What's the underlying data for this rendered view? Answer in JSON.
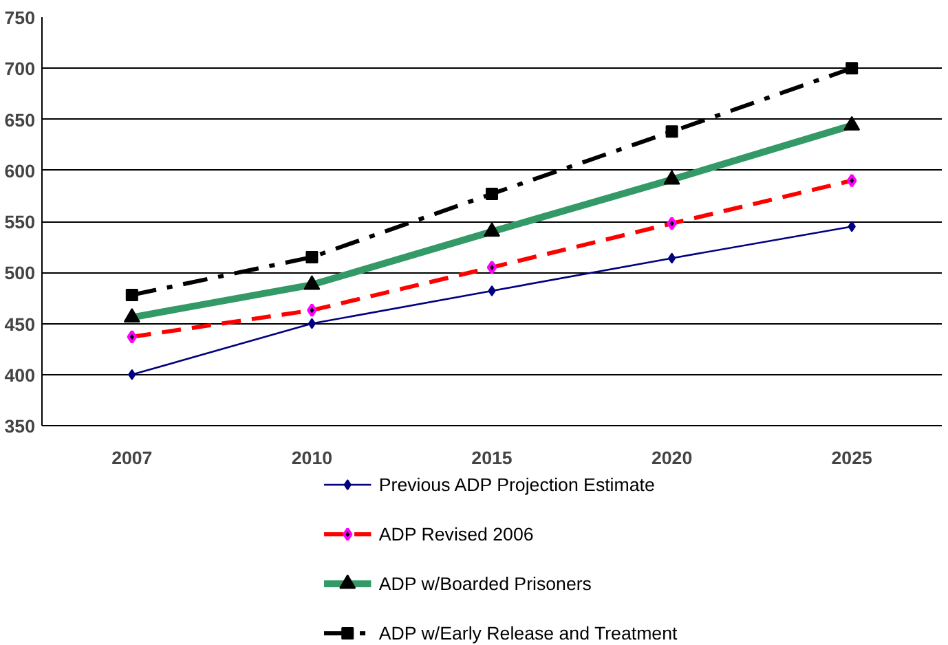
{
  "chart_data": {
    "type": "line",
    "categories": [
      "2007",
      "2010",
      "2015",
      "2020",
      "2025"
    ],
    "ylim": [
      350,
      750
    ],
    "yticks": [
      350,
      400,
      450,
      500,
      550,
      600,
      650,
      700,
      750
    ],
    "grid": "y",
    "legend": "bottom",
    "series": [
      {
        "name": "Previous ADP Projection Estimate",
        "color": "#000080",
        "values": [
          400,
          450,
          482,
          514,
          545
        ],
        "marker": "diamond",
        "line_style": "solid"
      },
      {
        "name": "ADP Revised 2006",
        "color": "#ff0000",
        "values": [
          437,
          463,
          505,
          548,
          590
        ],
        "marker": "diamond",
        "line_style": "dashed"
      },
      {
        "name": "ADP w/Boarded Prisoners",
        "color": "#339966",
        "values": [
          456,
          488,
          540,
          591,
          644
        ],
        "marker": "triangle",
        "line_style": "solid"
      },
      {
        "name": "ADP w/Early Release and Treatment",
        "color": "#000000",
        "values": [
          478,
          515,
          577,
          638,
          700
        ],
        "marker": "square",
        "line_style": "dashdot"
      }
    ]
  }
}
